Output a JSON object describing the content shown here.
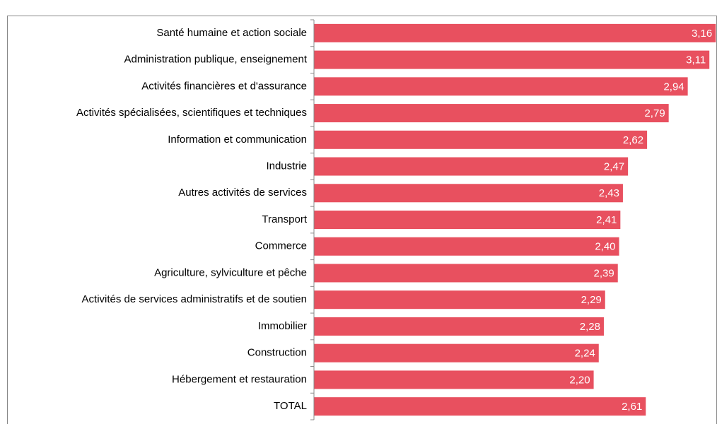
{
  "chart_data": {
    "type": "barh",
    "categories": [
      "Santé humaine et action sociale",
      "Administration publique, enseignement",
      "Activités financières et d'assurance",
      "Activités spécialisées, scientifiques et techniques",
      "Information et communication",
      "Industrie",
      "Autres activités de services",
      "Transport",
      "Commerce",
      "Agriculture, sylviculture et pêche",
      "Activités de services administratifs et de soutien",
      "Immobilier",
      "Construction",
      "Hébergement et restauration",
      "TOTAL"
    ],
    "values": [
      3.16,
      3.11,
      2.94,
      2.79,
      2.62,
      2.47,
      2.43,
      2.41,
      2.4,
      2.39,
      2.29,
      2.28,
      2.24,
      2.2,
      2.61
    ],
    "value_labels": [
      "3,16",
      "3,11",
      "2,94",
      "2,79",
      "2,62",
      "2,47",
      "2,43",
      "2,41",
      "2,40",
      "2,39",
      "2,29",
      "2,28",
      "2,24",
      "2,20",
      "2,61"
    ],
    "color": "#e8505f",
    "xlim": [
      0,
      3.17
    ]
  }
}
